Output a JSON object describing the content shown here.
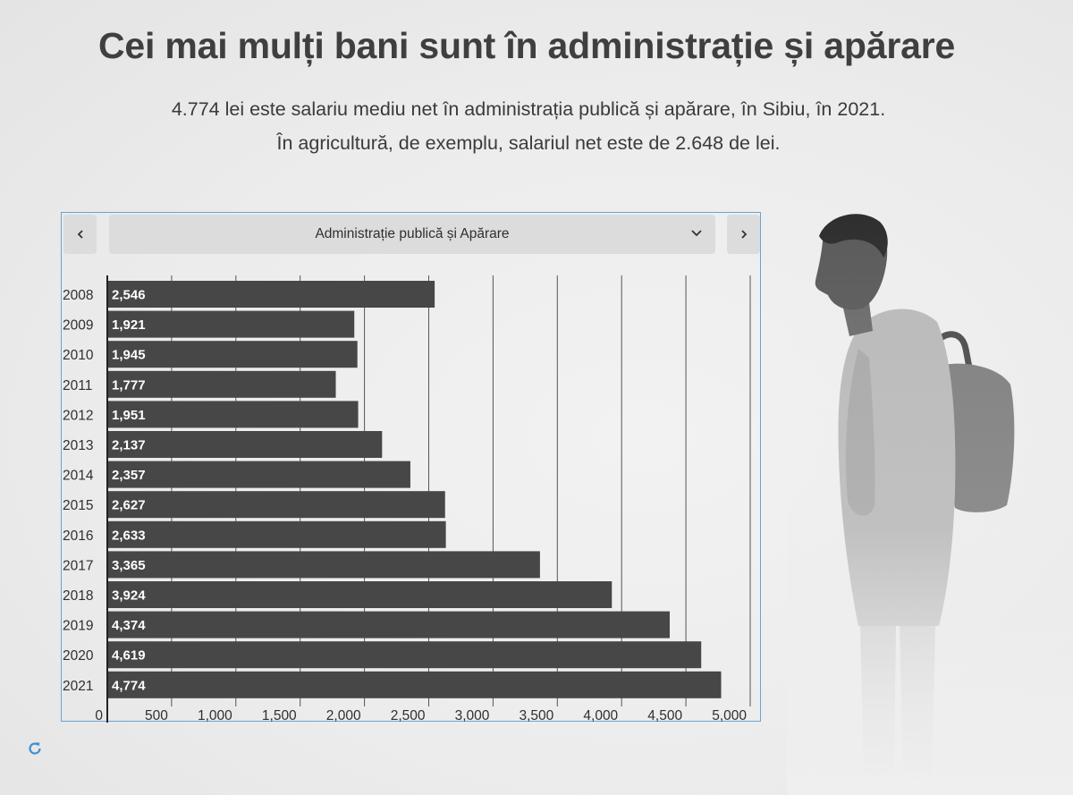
{
  "header": {
    "title": "Cei mai mulți bani sunt în administrație și apărare",
    "subtitle_line1": "4.774 lei este salariu mediu net în administrația publică și apărare, în Sibiu, în 2021.",
    "subtitle_line2": "În agricultură, de exemplu, salariul net este de 2.648 de lei."
  },
  "widget": {
    "selected_category": "Administrație publică și Apărare",
    "prev_icon": "chevron-left-icon",
    "next_icon": "chevron-right-icon",
    "dropdown_icon": "chevron-down-icon",
    "reload_icon": "refresh-icon"
  },
  "colors": {
    "bar": "#474747",
    "bar_label": "#ffffff",
    "grid": "#555555",
    "widget_border": "#6aa3d3",
    "control_bg": "#dcdcdc",
    "reload": "#3d8fd1"
  },
  "chart_data": {
    "type": "bar",
    "orientation": "horizontal",
    "categories": [
      "2008",
      "2009",
      "2010",
      "2011",
      "2012",
      "2013",
      "2014",
      "2015",
      "2016",
      "2017",
      "2018",
      "2019",
      "2020",
      "2021"
    ],
    "values": [
      2546,
      1921,
      1945,
      1777,
      1951,
      2137,
      2357,
      2627,
      2633,
      3365,
      3924,
      4374,
      4619,
      4774
    ],
    "value_labels": [
      "2,546",
      "1,921",
      "1,945",
      "1,777",
      "1,951",
      "2,137",
      "2,357",
      "2,627",
      "2,633",
      "3,365",
      "3,924",
      "4,374",
      "4,619",
      "4,774"
    ],
    "x_ticks": [
      0,
      500,
      1000,
      1500,
      2000,
      2500,
      3000,
      3500,
      4000,
      4500,
      5000
    ],
    "x_tick_labels": [
      "0",
      "500",
      "1,000",
      "1,500",
      "2,000",
      "2,500",
      "3,000",
      "3,500",
      "4,000",
      "4,500",
      "5,000"
    ],
    "xlim": [
      0,
      5000
    ],
    "grid": true,
    "title": "",
    "xlabel": "",
    "ylabel": ""
  }
}
